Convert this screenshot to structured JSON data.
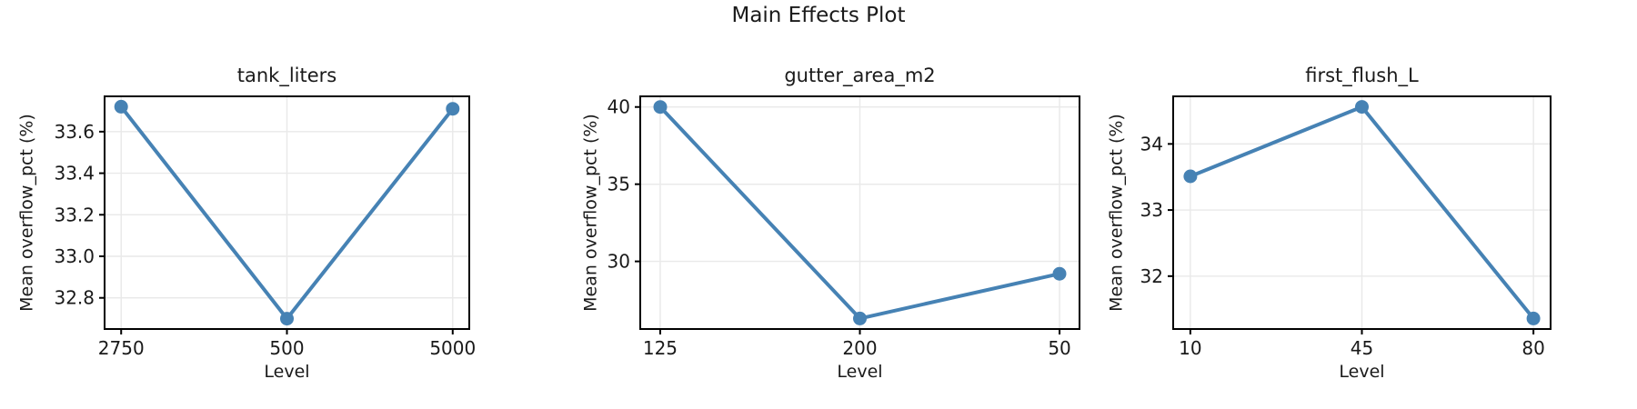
{
  "figure": {
    "title": "Main Effects Plot"
  },
  "style": {
    "line_color": "#4682B4",
    "marker_color": "#4682B4",
    "grid_color": "#e9e9e9",
    "spine_color": "#000000",
    "text_color": "#1a1a1a",
    "background": "#ffffff"
  },
  "chart_data": [
    {
      "type": "line",
      "title": "tank_liters",
      "xlabel": "Level",
      "ylabel": "Mean overflow_pct (%)",
      "categories": [
        "2750",
        "500",
        "5000"
      ],
      "values": [
        33.72,
        32.7,
        33.71
      ],
      "yticks": [
        32.8,
        33.0,
        33.2,
        33.4,
        33.6
      ],
      "ytick_labels": [
        "32.8",
        "33.0",
        "33.2",
        "33.4",
        "33.6"
      ],
      "ylim": [
        32.65,
        33.77
      ],
      "grid": true,
      "legend": false
    },
    {
      "type": "line",
      "title": "gutter_area_m2",
      "xlabel": "Level",
      "ylabel": "Mean overflow_pct (%)",
      "categories": [
        "125",
        "200",
        "50"
      ],
      "values": [
        40.0,
        26.3,
        29.2
      ],
      "yticks": [
        30,
        35,
        40
      ],
      "ytick_labels": [
        "30",
        "35",
        "40"
      ],
      "ylim": [
        25.62,
        40.69
      ],
      "grid": true,
      "legend": false
    },
    {
      "type": "line",
      "title": "first_flush_L",
      "xlabel": "Level",
      "ylabel": "Mean overflow_pct (%)",
      "categories": [
        "10",
        "45",
        "80"
      ],
      "values": [
        33.51,
        34.56,
        31.36
      ],
      "yticks": [
        32,
        33,
        34
      ],
      "ytick_labels": [
        "32",
        "33",
        "34"
      ],
      "ylim": [
        31.2,
        34.72
      ],
      "grid": true,
      "legend": false
    }
  ]
}
